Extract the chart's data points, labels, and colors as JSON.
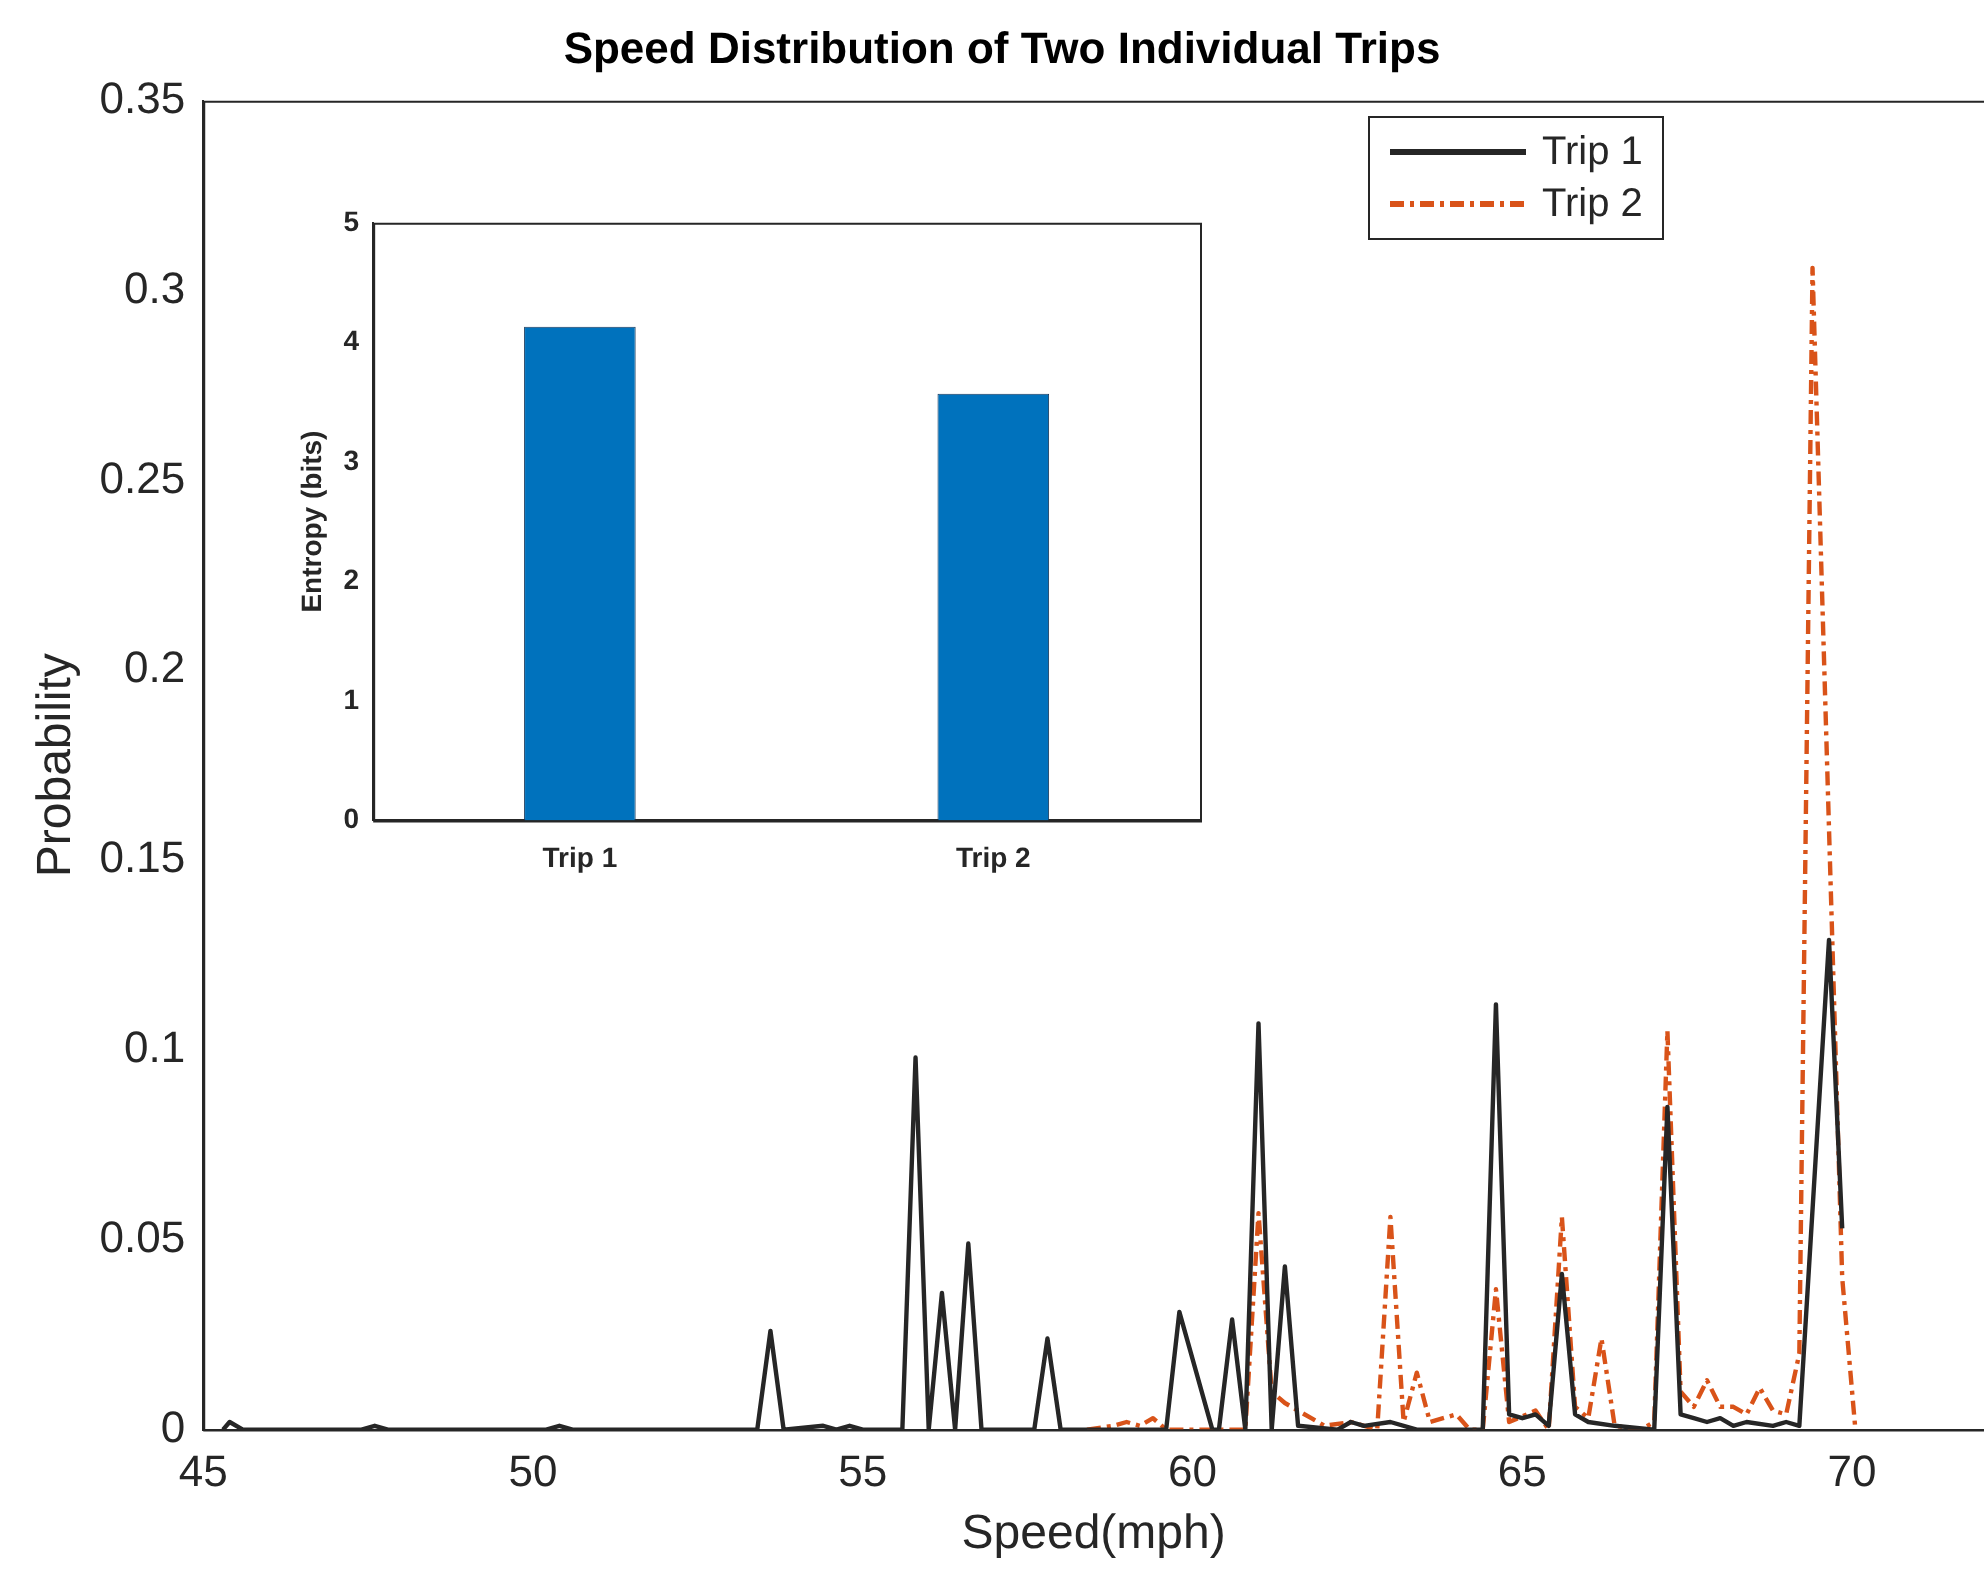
{
  "chart_data": [
    {
      "type": "line",
      "title": "Speed Distribution of Two Individual Trips",
      "xlabel": "Speed(mph)",
      "ylabel": "Probability",
      "xlim": [
        45,
        72
      ],
      "xticks": [
        45,
        50,
        55,
        60,
        65,
        70
      ],
      "ylim": [
        0,
        0.35
      ],
      "yticks": [
        0,
        0.05,
        0.1,
        0.15,
        0.2,
        0.25,
        0.3,
        0.35
      ],
      "grid": false,
      "legend": "top right",
      "series": [
        {
          "name": "Trip 1",
          "color": "#262626",
          "line_style": "solid",
          "x": [
            45.3,
            45.4,
            45.6,
            47.4,
            47.6,
            47.8,
            50.2,
            50.4,
            50.6,
            53.4,
            53.6,
            53.8,
            54.4,
            54.6,
            54.8,
            55.0,
            55.6,
            55.8,
            56.0,
            56.2,
            56.4,
            56.6,
            56.8,
            57.6,
            57.8,
            58.0,
            59.6,
            59.8,
            60.3,
            60.4,
            60.6,
            60.8,
            61.0,
            61.2,
            61.4,
            61.6,
            62.2,
            62.4,
            62.6,
            63.0,
            63.4,
            64.4,
            64.6,
            64.8,
            65.0,
            65.2,
            65.4,
            65.6,
            65.8,
            66.0,
            66.4,
            67.0,
            67.2,
            67.4,
            67.6,
            67.8,
            68.0,
            68.2,
            68.4,
            68.8,
            69.0,
            69.2,
            69.65,
            69.85
          ],
          "values": [
            0,
            0.002,
            0,
            0,
            0.001,
            0,
            0,
            0.001,
            0,
            0,
            0.026,
            0,
            0.001,
            0,
            0.001,
            0,
            0,
            0.098,
            0,
            0.036,
            0,
            0.049,
            0,
            0,
            0.024,
            0,
            0,
            0.031,
            0,
            0,
            0.029,
            0,
            0.107,
            0,
            0.043,
            0.001,
            0,
            0.002,
            0.001,
            0.002,
            0,
            0,
            0.112,
            0.004,
            0.003,
            0.004,
            0.001,
            0.041,
            0.004,
            0.002,
            0.001,
            0,
            0.085,
            0.004,
            0.003,
            0.002,
            0.003,
            0.001,
            0.002,
            0.001,
            0.002,
            0.001,
            0.129,
            0.053
          ]
        },
        {
          "name": "Trip 2",
          "color": "#d95319",
          "line_style": "dashed",
          "x": [
            58.4,
            58.8,
            59.0,
            59.2,
            59.4,
            59.6,
            60.8,
            61.0,
            61.2,
            61.4,
            61.8,
            62.0,
            62.4,
            62.8,
            63.0,
            63.2,
            63.4,
            63.6,
            64.0,
            64.2,
            64.4,
            64.6,
            64.8,
            65.2,
            65.4,
            65.6,
            65.8,
            66.0,
            66.2,
            66.4,
            66.8,
            67.0,
            67.2,
            67.4,
            67.6,
            67.8,
            68.0,
            68.2,
            68.4,
            68.6,
            68.8,
            69.0,
            69.2,
            69.4,
            69.85,
            70.05
          ],
          "values": [
            0,
            0.001,
            0.002,
            0.001,
            0.003,
            0,
            0,
            0.057,
            0.01,
            0.007,
            0.003,
            0.001,
            0.002,
            0,
            0.056,
            0.002,
            0.015,
            0.002,
            0.004,
            0,
            0,
            0.037,
            0.002,
            0.005,
            0,
            0.056,
            0.006,
            0.003,
            0.024,
            0.001,
            0,
            0.002,
            0.105,
            0.01,
            0.006,
            0.013,
            0.006,
            0.006,
            0.004,
            0.011,
            0.005,
            0.004,
            0.02,
            0.306,
            0.04,
            0
          ]
        }
      ]
    },
    {
      "type": "bar",
      "ylabel": "Entropy (bits)",
      "categories": [
        "Trip 1",
        "Trip 2"
      ],
      "values": [
        4.13,
        3.57
      ],
      "color": "#0072bd",
      "ylim": [
        0,
        5
      ],
      "yticks": [
        0,
        1,
        2,
        3,
        4,
        5
      ],
      "grid": false
    }
  ]
}
